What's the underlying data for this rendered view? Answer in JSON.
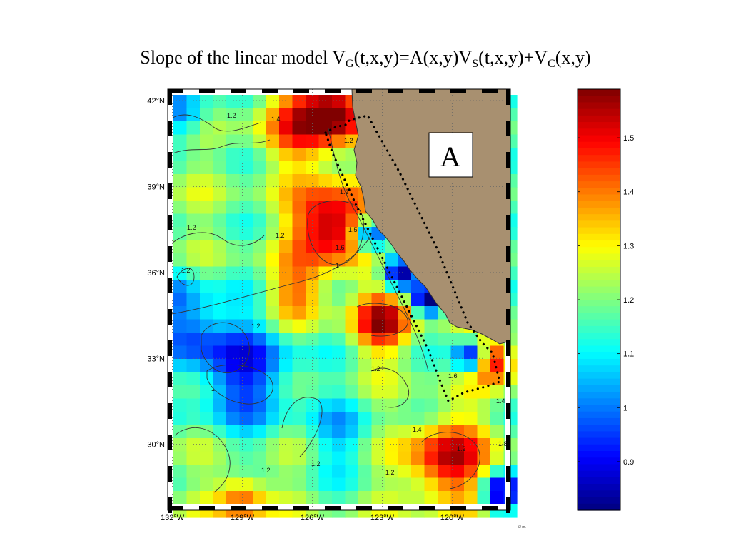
{
  "title": {
    "t1": "Slope of the linear model V",
    "s1": "G",
    "t2": "(t,x,y)=A(x,y)V",
    "s2": "S",
    "t3": "(t,x,y)+V",
    "s3": "C",
    "t4": "(x,y)"
  },
  "region_label": "A",
  "map": {
    "lat_ticks": [
      "42°N",
      "39°N",
      "36°N",
      "33°N",
      "30°N"
    ],
    "lon_ticks": [
      "132°W",
      "129°W",
      "126°W",
      "123°W",
      "120°W"
    ],
    "lat_values": [
      42,
      39,
      36,
      33,
      30
    ],
    "lon_values": [
      -132,
      -129,
      -126,
      -123,
      -120
    ],
    "lon_range": [
      -132.2,
      -117.5
    ],
    "lat_range": [
      27.7,
      42.4
    ],
    "land_color": "#a89070",
    "grid_style": "dotted",
    "contour_labels": [
      "1",
      "1.2",
      "1.2",
      "1.4",
      "1.2",
      "1.2",
      "1.2",
      "1.2",
      "1.2",
      "1",
      "1.2",
      "1.2",
      "1.2",
      "1.4",
      "1.6",
      "1.2",
      "1.8",
      "1.5",
      "1.4",
      "1.2",
      "1.6"
    ]
  },
  "colorbar": {
    "ticks": [
      "1.5",
      "1.4",
      "1.3",
      "1.2",
      "1.1",
      "1",
      "0.9"
    ],
    "tick_values": [
      1.5,
      1.4,
      1.3,
      1.2,
      1.1,
      1.0,
      0.9
    ],
    "range": [
      0.81,
      1.59
    ],
    "colormap": "jet"
  },
  "footer_text": "i2 m."
}
